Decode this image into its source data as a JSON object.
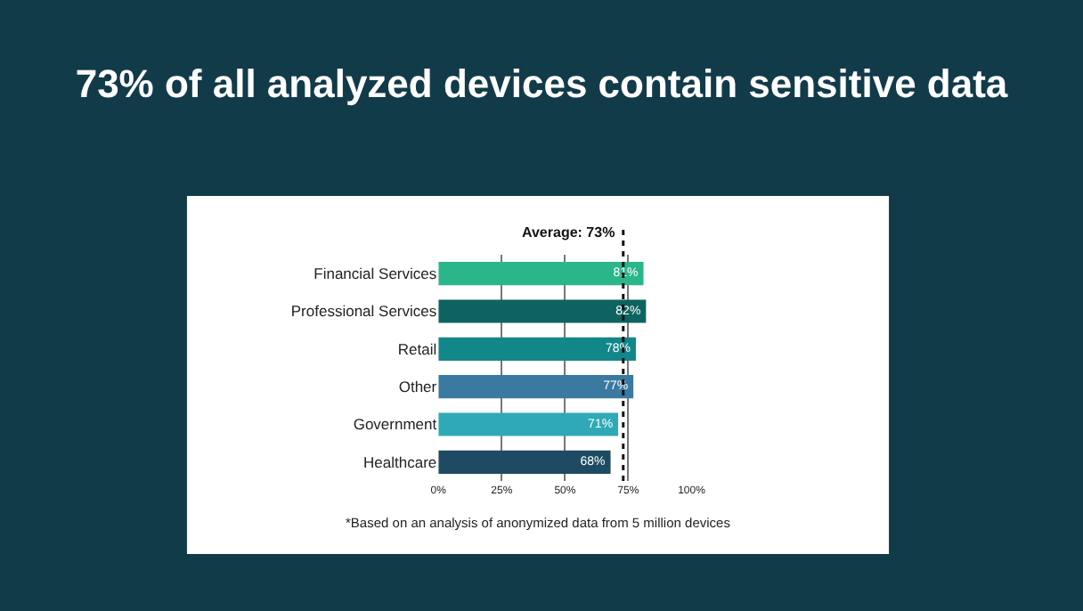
{
  "chart_data": {
    "type": "bar",
    "orientation": "horizontal",
    "title": "73% of all analyzed devices contain sensitive data",
    "categories": [
      "Financial Services",
      "Professional Services",
      "Retail",
      "Other",
      "Government",
      "Healthcare"
    ],
    "values": [
      81,
      82,
      78,
      77,
      71,
      68
    ],
    "value_labels": [
      "81%",
      "82%",
      "78%",
      "77%",
      "71%",
      "68%"
    ],
    "colors": [
      "#2bb58a",
      "#0e6360",
      "#12878a",
      "#3a79a0",
      "#2fa9b5",
      "#1e4b63"
    ],
    "xlim": [
      0,
      100
    ],
    "xticks": [
      {
        "value": 0,
        "label": "0%"
      },
      {
        "value": 25,
        "label": "25%"
      },
      {
        "value": 50,
        "label": "50%"
      },
      {
        "value": 75,
        "label": "75%"
      },
      {
        "value": 100,
        "label": "100%"
      }
    ],
    "grid": "x",
    "ref_lines": [
      {
        "axis": "x",
        "value": 73,
        "label": "Average: 73%",
        "color": "#111111",
        "line_style": "dotted"
      }
    ],
    "annotations": [
      "*Based on an analysis of anonymized data from 5 million devices"
    ]
  }
}
